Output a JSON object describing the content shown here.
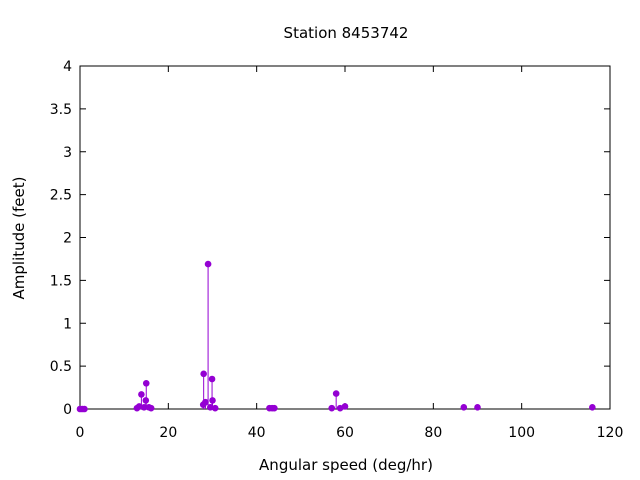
{
  "chart_data": {
    "type": "scatter",
    "title": "Station 8453742",
    "xlabel": "Angular speed (deg/hr)",
    "ylabel": "Amplitude (feet)",
    "xlim": [
      0,
      120
    ],
    "ylim": [
      0,
      4
    ],
    "x_ticks": [
      0,
      20,
      40,
      60,
      80,
      100,
      120
    ],
    "y_ticks": [
      0,
      0.5,
      1,
      1.5,
      2,
      2.5,
      3,
      3.5,
      4
    ],
    "x_tick_labels": [
      "0",
      "20",
      "40",
      "60",
      "80",
      "100",
      "120"
    ],
    "y_tick_labels": [
      "0",
      "0.5",
      "1",
      "1.5",
      "2",
      "2.5",
      "3",
      "3.5",
      "4"
    ],
    "grid": false,
    "marker_style": "impulse-with-point",
    "series": [
      {
        "color": "#9400d3",
        "points": [
          {
            "x": 0.0,
            "y": 0.0
          },
          {
            "x": 0.5,
            "y": 0.0
          },
          {
            "x": 1.0,
            "y": 0.0
          },
          {
            "x": 12.9,
            "y": 0.01
          },
          {
            "x": 13.4,
            "y": 0.03
          },
          {
            "x": 13.9,
            "y": 0.17
          },
          {
            "x": 14.5,
            "y": 0.02
          },
          {
            "x": 14.9,
            "y": 0.1
          },
          {
            "x": 15.0,
            "y": 0.3
          },
          {
            "x": 15.6,
            "y": 0.02
          },
          {
            "x": 16.1,
            "y": 0.01
          },
          {
            "x": 27.9,
            "y": 0.05
          },
          {
            "x": 28.0,
            "y": 0.41
          },
          {
            "x": 28.4,
            "y": 0.08
          },
          {
            "x": 29.0,
            "y": 1.69
          },
          {
            "x": 29.5,
            "y": 0.02
          },
          {
            "x": 29.9,
            "y": 0.35
          },
          {
            "x": 30.0,
            "y": 0.1
          },
          {
            "x": 30.6,
            "y": 0.01
          },
          {
            "x": 42.9,
            "y": 0.01
          },
          {
            "x": 43.5,
            "y": 0.01
          },
          {
            "x": 44.0,
            "y": 0.01
          },
          {
            "x": 57.0,
            "y": 0.01
          },
          {
            "x": 58.0,
            "y": 0.18
          },
          {
            "x": 58.9,
            "y": 0.01
          },
          {
            "x": 60.0,
            "y": 0.03
          },
          {
            "x": 86.9,
            "y": 0.02
          },
          {
            "x": 90.0,
            "y": 0.02
          },
          {
            "x": 116.0,
            "y": 0.02
          }
        ]
      }
    ]
  }
}
